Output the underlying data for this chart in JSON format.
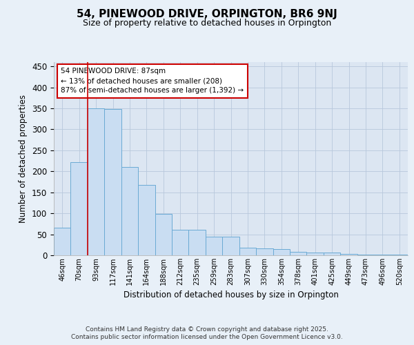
{
  "title": "54, PINEWOOD DRIVE, ORPINGTON, BR6 9NJ",
  "subtitle": "Size of property relative to detached houses in Orpington",
  "xlabel": "Distribution of detached houses by size in Orpington",
  "ylabel": "Number of detached properties",
  "categories": [
    "46sqm",
    "70sqm",
    "93sqm",
    "117sqm",
    "141sqm",
    "164sqm",
    "188sqm",
    "212sqm",
    "235sqm",
    "259sqm",
    "283sqm",
    "307sqm",
    "330sqm",
    "354sqm",
    "378sqm",
    "401sqm",
    "425sqm",
    "449sqm",
    "473sqm",
    "496sqm",
    "520sqm"
  ],
  "values": [
    65,
    222,
    350,
    348,
    210,
    168,
    98,
    60,
    60,
    44,
    44,
    18,
    16,
    14,
    8,
    7,
    7,
    4,
    2,
    1,
    1
  ],
  "bar_color": "#c9ddf2",
  "bar_edge_color": "#6aaad4",
  "grid_color": "#b8c8dc",
  "background_color": "#dce6f2",
  "annotation_lines": [
    "54 PINEWOOD DRIVE: 87sqm",
    "← 13% of detached houses are smaller (208)",
    "87% of semi-detached houses are larger (1,392) →"
  ],
  "annotation_box_color": "#ffffff",
  "annotation_border_color": "#cc0000",
  "marker_line_color": "#cc0000",
  "ylim": [
    0,
    460
  ],
  "yticks": [
    0,
    50,
    100,
    150,
    200,
    250,
    300,
    350,
    400,
    450
  ],
  "footer_line1": "Contains HM Land Registry data © Crown copyright and database right 2025.",
  "footer_line2": "Contains public sector information licensed under the Open Government Licence v3.0.",
  "fig_bg_color": "#e8f0f8"
}
